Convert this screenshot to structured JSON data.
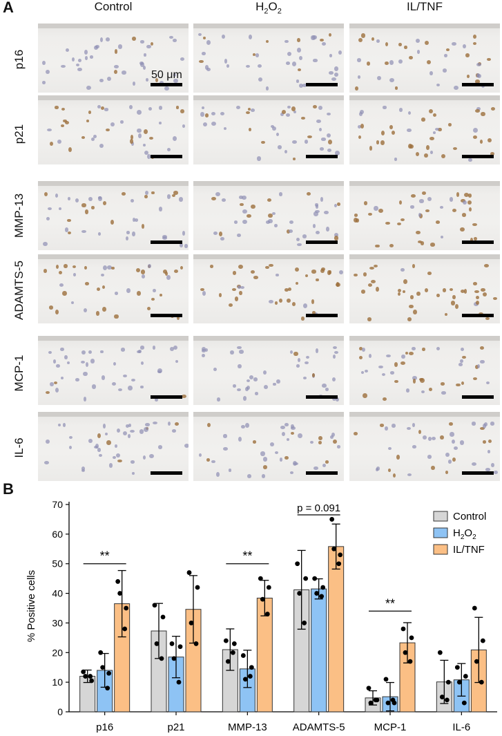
{
  "panel_a": {
    "letter": "A",
    "columns": [
      "Control",
      "H2O2",
      "IL/TNF"
    ],
    "rows": [
      "p16",
      "p21",
      "MMP-13",
      "ADAMTS-5",
      "MCP-1",
      "IL-6"
    ],
    "scale_label": "50 μm",
    "h2o2_label": {
      "main": "H",
      "sub": "2",
      "mid": "O",
      "sub2": "2"
    }
  },
  "panel_b": {
    "letter": "B"
  },
  "chart_data": {
    "type": "bar",
    "title": "",
    "ylabel": "% Positive cells",
    "xlabel": "",
    "ylim": [
      0,
      70
    ],
    "yticks": [
      0,
      10,
      20,
      30,
      40,
      50,
      60,
      70
    ],
    "categories": [
      "p16",
      "p21",
      "MMP-13",
      "ADAMTS-5",
      "MCP-1",
      "IL-6"
    ],
    "series": [
      {
        "name": "Control",
        "color": "#d6d6d6",
        "values": [
          12,
          27.3,
          21,
          41.2,
          4.7,
          10.1
        ],
        "errors": [
          2.1,
          9.3,
          7.0,
          13.3,
          2.4,
          7.3
        ],
        "points": [
          [
            13.5,
            10.5,
            12,
            12
          ],
          [
            36,
            32,
            23,
            18
          ],
          [
            24,
            23,
            17,
            20
          ],
          [
            50,
            45,
            40,
            30
          ],
          [
            8,
            4,
            3,
            4
          ],
          [
            20,
            10,
            5,
            4
          ]
        ]
      },
      {
        "name": "H2O2",
        "color": "#8ec3f4",
        "values": [
          14,
          18.5,
          14.5,
          41.5,
          5.1,
          10.8
        ],
        "errors": [
          5.7,
          7.0,
          6.3,
          3.4,
          4.8,
          5.5
        ],
        "points": [
          [
            20,
            13,
            15,
            8
          ],
          [
            23,
            22,
            18,
            10
          ],
          [
            19,
            15,
            11,
            12
          ],
          [
            45,
            42,
            40,
            39
          ],
          [
            11,
            3,
            3,
            4
          ],
          [
            15,
            12,
            10,
            3
          ]
        ]
      },
      {
        "name": "IL/TNF",
        "color": "#fbbf85",
        "values": [
          36.5,
          34.6,
          38.4,
          55.8,
          23.3,
          20.9
        ],
        "errors": [
          11.2,
          11.4,
          6.0,
          7.6,
          6.8,
          11.0
        ],
        "points": [
          [
            44,
            35,
            40,
            28
          ],
          [
            47,
            42,
            30,
            23
          ],
          [
            45,
            42,
            38,
            33
          ],
          [
            65,
            53,
            55,
            50
          ],
          [
            28,
            25,
            20,
            17
          ],
          [
            35,
            24,
            17,
            10
          ]
        ]
      }
    ],
    "annotations": [
      {
        "text": "**",
        "category_index": 0,
        "y": 50
      },
      {
        "text": "**",
        "category_index": 2,
        "y": 50
      },
      {
        "text": "p = 0.091",
        "category_index": 3,
        "y": 66.5
      },
      {
        "text": "**",
        "category_index": 4,
        "y": 34
      }
    ],
    "legend_position": "top-right",
    "legend_h2o2": {
      "main": "H",
      "sub": "2",
      "mid": "O",
      "sub2": "2"
    }
  }
}
